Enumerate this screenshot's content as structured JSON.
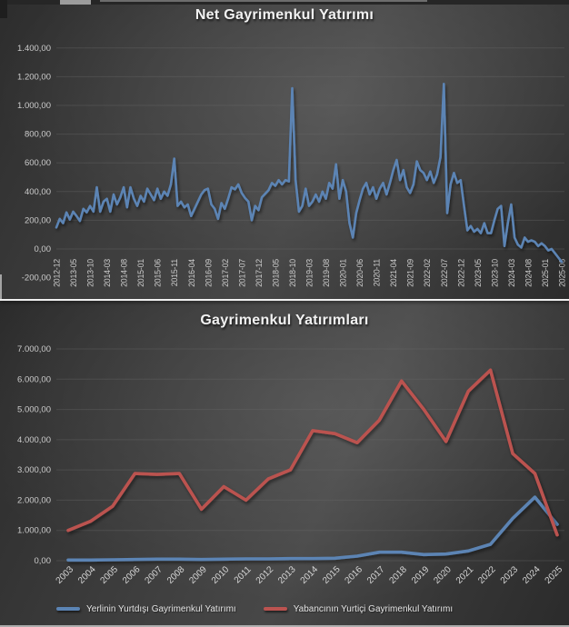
{
  "colors": {
    "blue_line": "#5b84b4",
    "red_line": "#bb5350",
    "grid": "#6a6a6a",
    "tick_label": "#cccccc",
    "title": "#f2f2f2",
    "axis_line": "#efefef"
  },
  "chart_data": [
    {
      "type": "line",
      "title": "Net Gayrimenkul Yatırımı",
      "x_frequency": "monthly",
      "x_start": "2012-12",
      "x_end": "2025-06",
      "x_tick_labels": [
        "2012-12",
        "2013-05",
        "2013-10",
        "2014-03",
        "2014-08",
        "2015-01",
        "2015-06",
        "2015-11",
        "2016-04",
        "2016-09",
        "2017-02",
        "2017-07",
        "2017-12",
        "2018-05",
        "2018-10",
        "2019-03",
        "2019-08",
        "2020-01",
        "2020-06",
        "2020-11",
        "2021-04",
        "2021-09",
        "2022-02",
        "2022-07",
        "2022-12",
        "2023-05",
        "2023-10",
        "2024-03",
        "2024-08",
        "2025-01",
        "2025-06"
      ],
      "ylim": [
        -200,
        1400
      ],
      "y_ticks": [
        {
          "label": "1.400,00",
          "value": 1400
        },
        {
          "label": "1.200,00",
          "value": 1200
        },
        {
          "label": "1.000,00",
          "value": 1000
        },
        {
          "label": "800,00",
          "value": 800
        },
        {
          "label": "600,00",
          "value": 600
        },
        {
          "label": "400,00",
          "value": 400
        },
        {
          "label": "200,00",
          "value": 200
        },
        {
          "label": "0,00",
          "value": 0
        },
        {
          "label": "-200,00",
          "value": -200
        }
      ],
      "grid": true,
      "legend": false,
      "series": [
        {
          "color": "#5b84b4",
          "values": [
            150,
            210,
            180,
            255,
            205,
            260,
            230,
            195,
            280,
            255,
            300,
            260,
            430,
            260,
            330,
            350,
            260,
            380,
            310,
            360,
            430,
            290,
            430,
            350,
            300,
            370,
            330,
            420,
            380,
            340,
            420,
            350,
            400,
            370,
            450,
            630,
            300,
            330,
            290,
            310,
            230,
            280,
            330,
            380,
            410,
            420,
            310,
            280,
            210,
            320,
            280,
            350,
            430,
            415,
            450,
            390,
            355,
            330,
            200,
            300,
            270,
            360,
            385,
            410,
            460,
            440,
            480,
            450,
            480,
            470,
            1120,
            480,
            260,
            300,
            420,
            300,
            330,
            380,
            330,
            400,
            350,
            460,
            420,
            590,
            350,
            480,
            400,
            180,
            80,
            250,
            340,
            420,
            460,
            380,
            430,
            350,
            420,
            460,
            380,
            460,
            550,
            620,
            480,
            550,
            430,
            390,
            450,
            610,
            550,
            530,
            480,
            540,
            460,
            520,
            640,
            1150,
            250,
            450,
            530,
            460,
            480,
            300,
            130,
            160,
            120,
            140,
            110,
            180,
            110,
            110,
            200,
            280,
            300,
            20,
            180,
            310,
            80,
            30,
            10,
            80,
            50,
            60,
            50,
            20,
            40,
            20,
            -10,
            0,
            -30,
            -60,
            -90
          ]
        }
      ]
    },
    {
      "type": "line",
      "title": "Gayrimenkul Yatırımları",
      "categories": [
        "2003",
        "2004",
        "2005",
        "2006",
        "2007",
        "2008",
        "2009",
        "2010",
        "2011",
        "2012",
        "2013",
        "2014",
        "2015",
        "2016",
        "2017",
        "2018",
        "2019",
        "2020",
        "2021",
        "2022",
        "2023",
        "2024",
        "2025"
      ],
      "ylim": [
        0,
        7000
      ],
      "y_ticks": [
        {
          "label": "7.000,00",
          "value": 7000
        },
        {
          "label": "6.000,00",
          "value": 6000
        },
        {
          "label": "5.000,00",
          "value": 5000
        },
        {
          "label": "4.000,00",
          "value": 4000
        },
        {
          "label": "3.000,00",
          "value": 3000
        },
        {
          "label": "2.000,00",
          "value": 2000
        },
        {
          "label": "1.000,00",
          "value": 1000
        },
        {
          "label": "0,00",
          "value": 0
        }
      ],
      "grid": true,
      "legend_position": "bottom",
      "series": [
        {
          "name": "Yerlinin Yurtdışı Gayrimenkul Yatırımı",
          "color": "#5b84b4",
          "values": [
            20,
            20,
            30,
            40,
            50,
            50,
            40,
            50,
            60,
            60,
            70,
            70,
            80,
            150,
            280,
            280,
            200,
            220,
            320,
            540,
            1400,
            2100,
            1200
          ]
        },
        {
          "name": "Yabancının Yurtiçi Gayrimenkul Yatırımı",
          "color": "#bb5350",
          "values": [
            1000,
            1300,
            1800,
            2880,
            2850,
            2880,
            1700,
            2450,
            2000,
            2700,
            3000,
            4300,
            4200,
            3900,
            4650,
            5940,
            5000,
            3940,
            5600,
            6300,
            3540,
            2880,
            850
          ]
        }
      ]
    }
  ]
}
